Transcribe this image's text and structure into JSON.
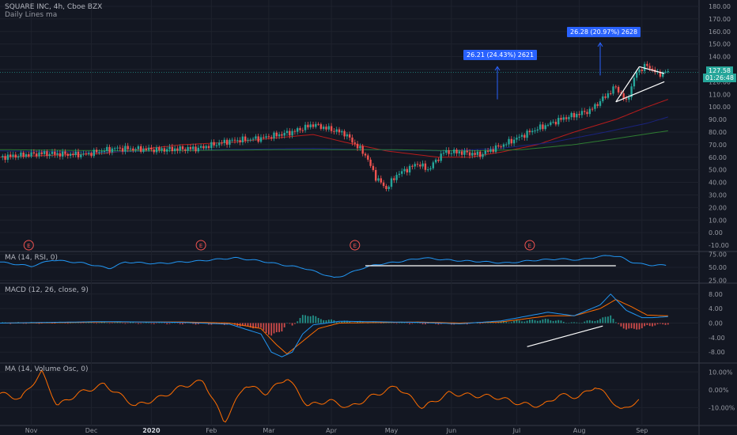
{
  "header": {
    "symbol_line": "SQUARE INC, 4h, Cboe BZX",
    "study_line": "Daily Lines ma"
  },
  "colors": {
    "background": "#131722",
    "grid": "#1e222d",
    "up": "#26a69a",
    "down": "#ef5350",
    "ma_red": "#b71c1c",
    "ma_blue": "#1a237e",
    "ma_green": "#2e7d32",
    "rsi": "#2196f3",
    "macd": "#2196f3",
    "signal": "#ff6d00",
    "volosc": "#ff6d00",
    "annotation": "#2962ff",
    "earnings": "#ef5350"
  },
  "annotations": {
    "label1": "26.21 (24.43%) 2621",
    "label2": "26.28 (20.97%) 2628",
    "last_price": "127.58",
    "countdown": "01:26:48",
    "earnings_marker": "E"
  },
  "chart_data": [
    {
      "type": "candlestick",
      "title": "SQUARE INC, 4h, Cboe BZX",
      "subtitle": "Daily Lines ma",
      "x_labels": [
        "Nov",
        "Dec",
        "2020",
        "Feb",
        "Mar",
        "Apr",
        "May",
        "Jun",
        "Jul",
        "Aug",
        "Sep"
      ],
      "y_ticks": [
        -10,
        0,
        10,
        20,
        30,
        40,
        50,
        60,
        70,
        80,
        90,
        100,
        110,
        120,
        130,
        140,
        150,
        160,
        170,
        180
      ],
      "ylim": [
        -15,
        185
      ],
      "price_path": [
        [
          0,
          60
        ],
        [
          8,
          63
        ],
        [
          16,
          62
        ],
        [
          22,
          67
        ],
        [
          30,
          66
        ],
        [
          38,
          67
        ],
        [
          44,
          73
        ],
        [
          50,
          75
        ],
        [
          56,
          80
        ],
        [
          60,
          86
        ],
        [
          66,
          79
        ],
        [
          70,
          62
        ],
        [
          72,
          44
        ],
        [
          74,
          35
        ],
        [
          76,
          46
        ],
        [
          80,
          55
        ],
        [
          82,
          50
        ],
        [
          85,
          64
        ],
        [
          88,
          64
        ],
        [
          92,
          62
        ],
        [
          97,
          71
        ],
        [
          102,
          81
        ],
        [
          108,
          91
        ],
        [
          113,
          97
        ],
        [
          118,
          116
        ],
        [
          120,
          104
        ],
        [
          122,
          128
        ],
        [
          124,
          133
        ],
        [
          126,
          126
        ],
        [
          128,
          128
        ]
      ],
      "ma_red": [
        [
          0,
          60
        ],
        [
          20,
          63
        ],
        [
          35,
          70
        ],
        [
          45,
          72
        ],
        [
          52,
          75
        ],
        [
          60,
          78
        ],
        [
          66,
          72
        ],
        [
          74,
          65
        ],
        [
          84,
          60
        ],
        [
          90,
          60
        ],
        [
          96,
          64
        ],
        [
          103,
          70
        ],
        [
          110,
          80
        ],
        [
          118,
          90
        ],
        [
          124,
          100
        ],
        [
          128,
          106
        ]
      ],
      "ma_blue": [
        [
          0,
          65
        ],
        [
          20,
          64
        ],
        [
          40,
          66
        ],
        [
          60,
          67
        ],
        [
          70,
          66
        ],
        [
          85,
          65
        ],
        [
          96,
          67
        ],
        [
          106,
          72
        ],
        [
          116,
          80
        ],
        [
          124,
          87
        ],
        [
          128,
          92
        ]
      ],
      "ma_green": [
        [
          0,
          66
        ],
        [
          25,
          65
        ],
        [
          55,
          66
        ],
        [
          75,
          66
        ],
        [
          90,
          65
        ],
        [
          100,
          66
        ],
        [
          110,
          70
        ],
        [
          120,
          76
        ],
        [
          128,
          81
        ]
      ],
      "earnings_markers_t": [
        5.5,
        38.5,
        68,
        101.5
      ]
    },
    {
      "type": "line",
      "title": "MA (14, RSI, 0)",
      "y_ticks": [
        25,
        50,
        75
      ],
      "ylim": [
        20,
        80
      ],
      "series": [
        {
          "name": "MA",
          "points": [
            [
              0,
              60
            ],
            [
              6,
              52
            ],
            [
              10,
              64
            ],
            [
              16,
              58
            ],
            [
              21,
              48
            ],
            [
              24,
              60
            ],
            [
              30,
              57
            ],
            [
              38,
              62
            ],
            [
              45,
              68
            ],
            [
              50,
              62
            ],
            [
              54,
              55
            ],
            [
              58,
              49
            ],
            [
              61,
              40
            ],
            [
              64,
              30
            ],
            [
              66,
              35
            ],
            [
              69,
              47
            ],
            [
              72,
              55
            ],
            [
              76,
              60
            ],
            [
              81,
              68
            ],
            [
              87,
              63
            ],
            [
              92,
              61
            ],
            [
              97,
              58
            ],
            [
              102,
              63
            ],
            [
              107,
              66
            ],
            [
              111,
              64
            ],
            [
              114,
              69
            ],
            [
              117,
              73
            ],
            [
              119,
              69
            ],
            [
              121,
              60
            ],
            [
              123,
              56
            ],
            [
              125,
              54
            ],
            [
              128,
              54
            ]
          ]
        }
      ]
    },
    {
      "type": "macd",
      "title": "MACD (12, 26, close, 9)",
      "y_ticks": [
        -8,
        -4,
        0,
        4,
        8
      ],
      "ylim": [
        -11,
        11
      ],
      "macd": [
        [
          0,
          0
        ],
        [
          10,
          0.2
        ],
        [
          20,
          0.4
        ],
        [
          35,
          0.2
        ],
        [
          44,
          -0.3
        ],
        [
          50,
          -3
        ],
        [
          52,
          -8
        ],
        [
          54,
          -9.3
        ],
        [
          56,
          -8
        ],
        [
          58,
          -3
        ],
        [
          60,
          -0.5
        ],
        [
          65,
          0.5
        ],
        [
          80,
          0.2
        ],
        [
          88,
          -0.2
        ],
        [
          96,
          0.6
        ],
        [
          105,
          3
        ],
        [
          110,
          2
        ],
        [
          115,
          5
        ],
        [
          117,
          8
        ],
        [
          120,
          3.5
        ],
        [
          123,
          1.5
        ],
        [
          125,
          1.5
        ],
        [
          128,
          1.8
        ]
      ],
      "signal": [
        [
          0,
          0
        ],
        [
          10,
          0.1
        ],
        [
          20,
          0.3
        ],
        [
          35,
          0.3
        ],
        [
          44,
          0
        ],
        [
          50,
          -1.5
        ],
        [
          53,
          -6
        ],
        [
          55,
          -8.5
        ],
        [
          58,
          -5
        ],
        [
          61,
          -1.5
        ],
        [
          65,
          0
        ],
        [
          80,
          0.3
        ],
        [
          88,
          0
        ],
        [
          96,
          0.3
        ],
        [
          105,
          2
        ],
        [
          110,
          2
        ],
        [
          115,
          4
        ],
        [
          118,
          6.5
        ],
        [
          121,
          4.5
        ],
        [
          124,
          2.2
        ],
        [
          128,
          2
        ]
      ],
      "histogram": "macd minus signal"
    },
    {
      "type": "line",
      "title": "MA (14, Volume Osc, 0)",
      "y_ticks": [
        -10,
        0,
        10
      ],
      "y_tick_labels": [
        "-10.00%",
        "0.00%",
        "10.00%"
      ],
      "ylim": [
        -20,
        15
      ],
      "series": [
        {
          "name": "MA",
          "points": [
            [
              0,
              -2
            ],
            [
              4,
              -5
            ],
            [
              8,
              10
            ],
            [
              11,
              -9
            ],
            [
              15,
              -2
            ],
            [
              20,
              3
            ],
            [
              26,
              -9
            ],
            [
              31,
              -4
            ],
            [
              35,
              2
            ],
            [
              39,
              5
            ],
            [
              43,
              -18
            ],
            [
              47,
              3
            ],
            [
              51,
              -2
            ],
            [
              55,
              7
            ],
            [
              59,
              -9
            ],
            [
              63,
              -6
            ],
            [
              67,
              -10
            ],
            [
              71,
              -4
            ],
            [
              76,
              2
            ],
            [
              81,
              -10
            ],
            [
              86,
              -2
            ],
            [
              90,
              -3
            ],
            [
              95,
              -4
            ],
            [
              100,
              -8
            ],
            [
              104,
              -9
            ],
            [
              107,
              -3
            ],
            [
              111,
              -4
            ],
            [
              114,
              2
            ],
            [
              117,
              -5
            ],
            [
              119,
              -12
            ],
            [
              121,
              -8
            ],
            [
              122.5,
              -6
            ]
          ]
        }
      ]
    }
  ]
}
